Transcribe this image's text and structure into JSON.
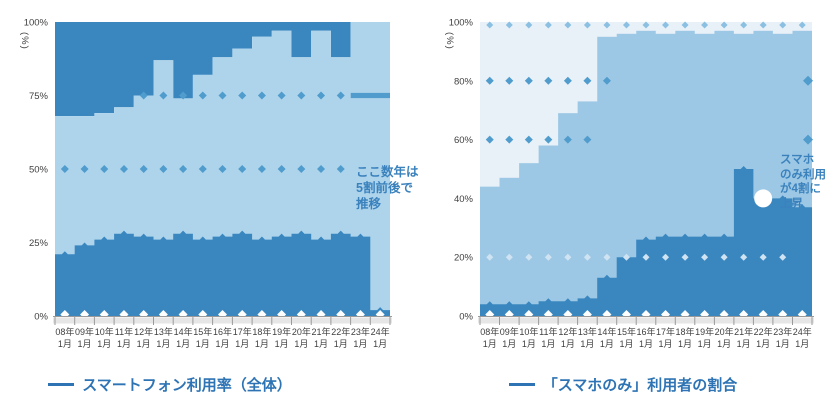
{
  "page": {
    "background": "#ffffff"
  },
  "colors": {
    "dark_blue": "#3a87c0",
    "light_blue": "#aed4ec",
    "medium_blue": "#9dc8e5",
    "pale_blue": "#e9f1f8",
    "row_blue": "#4f9ccd",
    "row_pale": "#cfe3f2",
    "row_top_blue": "#8cc0e2",
    "zero_row_white": "#ffffff",
    "annotation_blue": "#3b82bd",
    "legend_blue": "#2e74b5",
    "axis_text": "#404040",
    "axis_line": "#9a9a9a",
    "axis_band": "#e6e6e6"
  },
  "chart_data": [
    {
      "id": "chart-left",
      "type": "area",
      "unit_label": "(%)",
      "y_range": [
        0,
        100
      ],
      "grid": false,
      "legend_position": "bottom",
      "y_ticks": [
        {
          "value": 100,
          "label": "100%"
        },
        {
          "value": 75,
          "label": "75%"
        },
        {
          "value": 50,
          "label": "50%"
        },
        {
          "value": 25,
          "label": "25%"
        },
        {
          "value": 0,
          "label": "0%"
        }
      ],
      "categories": [
        {
          "line1": "08年",
          "line2": "1月"
        },
        {
          "line1": "09年",
          "line2": "1月"
        },
        {
          "line1": "10年",
          "line2": "1月"
        },
        {
          "line1": "11年",
          "line2": "1月"
        },
        {
          "line1": "12年",
          "line2": "1月"
        },
        {
          "line1": "13年",
          "line2": "1月"
        },
        {
          "line1": "14年",
          "line2": "1月"
        },
        {
          "line1": "15年",
          "line2": "1月"
        },
        {
          "line1": "16年",
          "line2": "1月"
        },
        {
          "line1": "17年",
          "line2": "1月"
        },
        {
          "line1": "18年",
          "line2": "1月"
        },
        {
          "line1": "19年",
          "line2": "1月"
        },
        {
          "line1": "20年",
          "line2": "1月"
        },
        {
          "line1": "21年",
          "line2": "1月"
        },
        {
          "line1": "22年",
          "line2": "1月"
        },
        {
          "line1": "23年",
          "line2": "1月"
        },
        {
          "line1": "24年",
          "line2": "1月"
        }
      ],
      "series": [
        {
          "name": "main-area",
          "role": "area-main",
          "color_key": "light_blue",
          "values": [
            68,
            68,
            69,
            71,
            75,
            87,
            74,
            82,
            88,
            91,
            95,
            97,
            88,
            97,
            88,
            100,
            100
          ]
        },
        {
          "name": "upper-complement-area",
          "role": "area-cap",
          "color_key": "dark_blue",
          "values": [
            32,
            32,
            31,
            29,
            25,
            13,
            26,
            18,
            12,
            9,
            5,
            3,
            12,
            3,
            12,
            0,
            0
          ]
        },
        {
          "name": "lower-overlay-area",
          "role": "area-overlay",
          "color_key": "dark_blue",
          "markers": true,
          "values": [
            21,
            24,
            26,
            28,
            27,
            26,
            28,
            26,
            27,
            28,
            26,
            27,
            28,
            26,
            28,
            27,
            2
          ]
        }
      ],
      "reference_rows": [
        {
          "value": 75,
          "from": 4,
          "to": 14,
          "size": 4,
          "color_key": "row_blue",
          "trailing_dash": true
        },
        {
          "value": 50,
          "from": 0,
          "to": 14,
          "size": 4,
          "color_key": "row_blue"
        },
        {
          "value": 0.5,
          "from": 0,
          "to": 16,
          "size": 4.5,
          "color_key": "zero_row_white"
        }
      ],
      "annotation": {
        "lines": [
          "ここ数年は",
          "5割前後で",
          "推移"
        ]
      },
      "legend": {
        "label": "スマートフォン利用率（全体）"
      }
    },
    {
      "id": "chart-right",
      "type": "area",
      "unit_label": "(%)",
      "y_range": [
        0,
        100
      ],
      "grid": false,
      "legend_position": "bottom",
      "y_ticks": [
        {
          "value": 100,
          "label": "100%"
        },
        {
          "value": 80,
          "label": "80%"
        },
        {
          "value": 60,
          "label": "60%"
        },
        {
          "value": 40,
          "label": "40%"
        },
        {
          "value": 20,
          "label": "20%"
        },
        {
          "value": 0,
          "label": "0%"
        }
      ],
      "categories": [
        {
          "line1": "08年",
          "line2": "1月"
        },
        {
          "line1": "09年",
          "line2": "1月"
        },
        {
          "line1": "10年",
          "line2": "1月"
        },
        {
          "line1": "11年",
          "line2": "1月"
        },
        {
          "line1": "12年",
          "line2": "1月"
        },
        {
          "line1": "13年",
          "line2": "1月"
        },
        {
          "line1": "14年",
          "line2": "1月"
        },
        {
          "line1": "15年",
          "line2": "1月"
        },
        {
          "line1": "16年",
          "line2": "1月"
        },
        {
          "line1": "17年",
          "line2": "1月"
        },
        {
          "line1": "18年",
          "line2": "1月"
        },
        {
          "line1": "19年",
          "line2": "1月"
        },
        {
          "line1": "20年",
          "line2": "1月"
        },
        {
          "line1": "21年",
          "line2": "1月"
        },
        {
          "line1": "22年",
          "line2": "1月"
        },
        {
          "line1": "23年",
          "line2": "1月"
        },
        {
          "line1": "24年",
          "line2": "1月"
        }
      ],
      "series": [
        {
          "name": "main-area",
          "role": "area-main",
          "color_key": "medium_blue",
          "values": [
            44,
            47,
            52,
            58,
            69,
            73,
            95,
            96,
            97,
            96,
            97,
            96,
            97,
            96,
            97,
            96,
            97
          ]
        },
        {
          "name": "upper-complement-area",
          "role": "area-cap",
          "color_key": "pale_blue",
          "values": [
            56,
            53,
            48,
            42,
            31,
            27,
            5,
            4,
            3,
            4,
            3,
            4,
            3,
            4,
            3,
            4,
            3
          ]
        },
        {
          "name": "lower-overlay-area",
          "role": "area-overlay",
          "color_key": "dark_blue",
          "markers": true,
          "values": [
            4,
            4,
            4,
            5,
            5,
            6,
            13,
            20,
            26,
            27,
            27,
            27,
            27,
            50,
            40,
            40,
            37
          ]
        }
      ],
      "reference_rows": [
        {
          "value": 99,
          "from": 0,
          "to": 16,
          "size": 3.5,
          "color_key": "row_top_blue"
        },
        {
          "value": 80,
          "from": 0,
          "to": 6,
          "size": 4,
          "color_key": "row_blue",
          "end_marker": true
        },
        {
          "value": 60,
          "from": 0,
          "to": 5,
          "size": 4,
          "color_key": "row_blue",
          "end_marker": true
        },
        {
          "value": 20,
          "from": 0,
          "to": 15,
          "size": 3.5,
          "color_key": "row_pale"
        },
        {
          "value": 0.5,
          "from": 0,
          "to": 16,
          "size": 4.5,
          "color_key": "zero_row_white"
        }
      ],
      "highlight_marker": {
        "slot": 14,
        "value": 40,
        "shape": "circle",
        "color": "#ffffff"
      },
      "annotation": {
        "lines": [
          "スマホ",
          "のみ利用",
          "が4割に",
          "上昇"
        ]
      },
      "legend": {
        "label": "「スマホのみ」利用者の割合"
      }
    }
  ]
}
